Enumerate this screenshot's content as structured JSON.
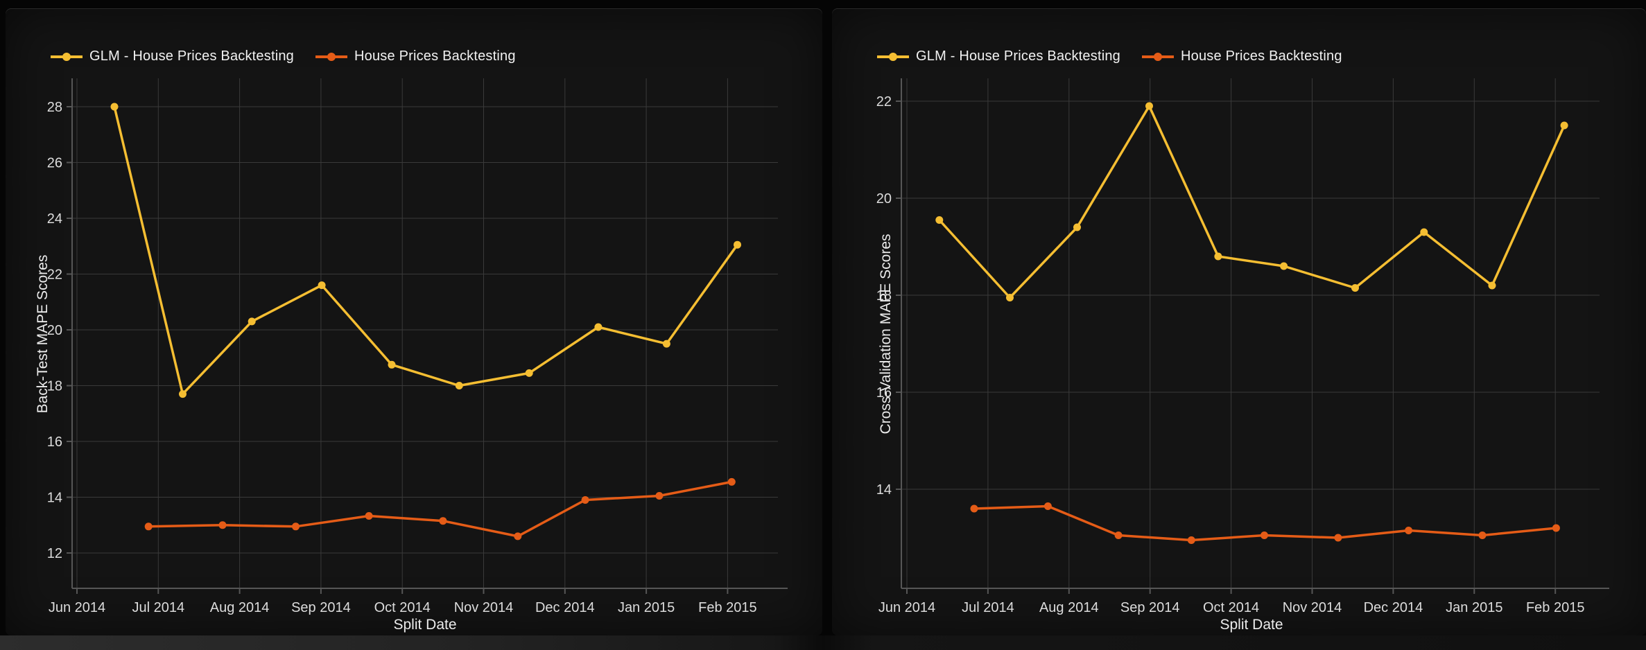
{
  "chart_data": [
    {
      "type": "line",
      "panel": "back-test",
      "xlabel": "Split Date",
      "ylabel": "Back-Test MAPE Scores",
      "x_tick_labels": [
        "Jun 2014",
        "Jul 2014",
        "Aug 2014",
        "Sep 2014",
        "Oct 2014",
        "Nov 2014",
        "Dec 2014",
        "Jan 2015",
        "Feb 2015"
      ],
      "y_tick_labels": [
        28,
        26,
        24,
        22,
        20,
        18,
        16,
        14,
        12
      ],
      "ylim": [
        10.7,
        29.0
      ],
      "grid": true,
      "legend_position": "top-left",
      "x_unit": "months after Jun 2014 tick",
      "series": [
        {
          "name": "GLM - House Prices Backtesting",
          "color": "#f5be32",
          "x": [
            0.46,
            1.3,
            2.15,
            3.01,
            3.87,
            4.7,
            5.56,
            6.41,
            7.25,
            8.12
          ],
          "y": [
            28.0,
            17.7,
            20.3,
            21.6,
            18.75,
            18.0,
            18.45,
            20.1,
            19.5,
            23.05
          ]
        },
        {
          "name": "House Prices Backtesting",
          "color": "#e55c17",
          "x": [
            0.88,
            1.79,
            2.69,
            3.59,
            4.5,
            5.42,
            6.25,
            7.16,
            8.05
          ],
          "y": [
            12.95,
            13.0,
            12.95,
            13.33,
            13.15,
            12.6,
            13.9,
            14.05,
            14.55
          ]
        }
      ]
    },
    {
      "type": "line",
      "panel": "cross-validation",
      "xlabel": "Split Date",
      "ylabel": "Cross-Validation MAPE Scores",
      "x_tick_labels": [
        "Jun 2014",
        "Jul 2014",
        "Aug 2014",
        "Sep 2014",
        "Oct 2014",
        "Nov 2014",
        "Dec 2014",
        "Jan 2015",
        "Feb 2015"
      ],
      "y_tick_labels": [
        22,
        20,
        18,
        16,
        14
      ],
      "ylim": [
        11.95,
        22.45
      ],
      "grid": true,
      "legend_position": "top-left",
      "x_unit": "months after Jun 2014 tick",
      "series": [
        {
          "name": "GLM - House Prices Backtesting",
          "color": "#f5be32",
          "x": [
            0.4,
            1.27,
            2.1,
            2.99,
            3.84,
            4.65,
            5.53,
            6.38,
            7.22,
            8.11
          ],
          "y": [
            19.55,
            17.95,
            19.4,
            21.9,
            18.8,
            18.6,
            18.15,
            19.3,
            18.2,
            21.5
          ]
        },
        {
          "name": "House Prices Backtesting",
          "color": "#e55c17",
          "x": [
            0.83,
            1.74,
            2.61,
            3.51,
            4.41,
            5.32,
            6.19,
            7.1,
            8.01
          ],
          "y": [
            13.6,
            13.65,
            13.05,
            12.95,
            13.05,
            13.0,
            13.15,
            13.05,
            13.2
          ]
        }
      ]
    }
  ],
  "colors": {
    "panel_bg": "#141414",
    "page_bg": "#050505",
    "gridline": "#3a3a3a",
    "axis_line": "#565656",
    "tick_text": "#dcdcdc",
    "title_text": "#ececec",
    "legend_text": "#f2f2f2",
    "series_glm": "#f5be32",
    "series_hp": "#e55c17"
  }
}
